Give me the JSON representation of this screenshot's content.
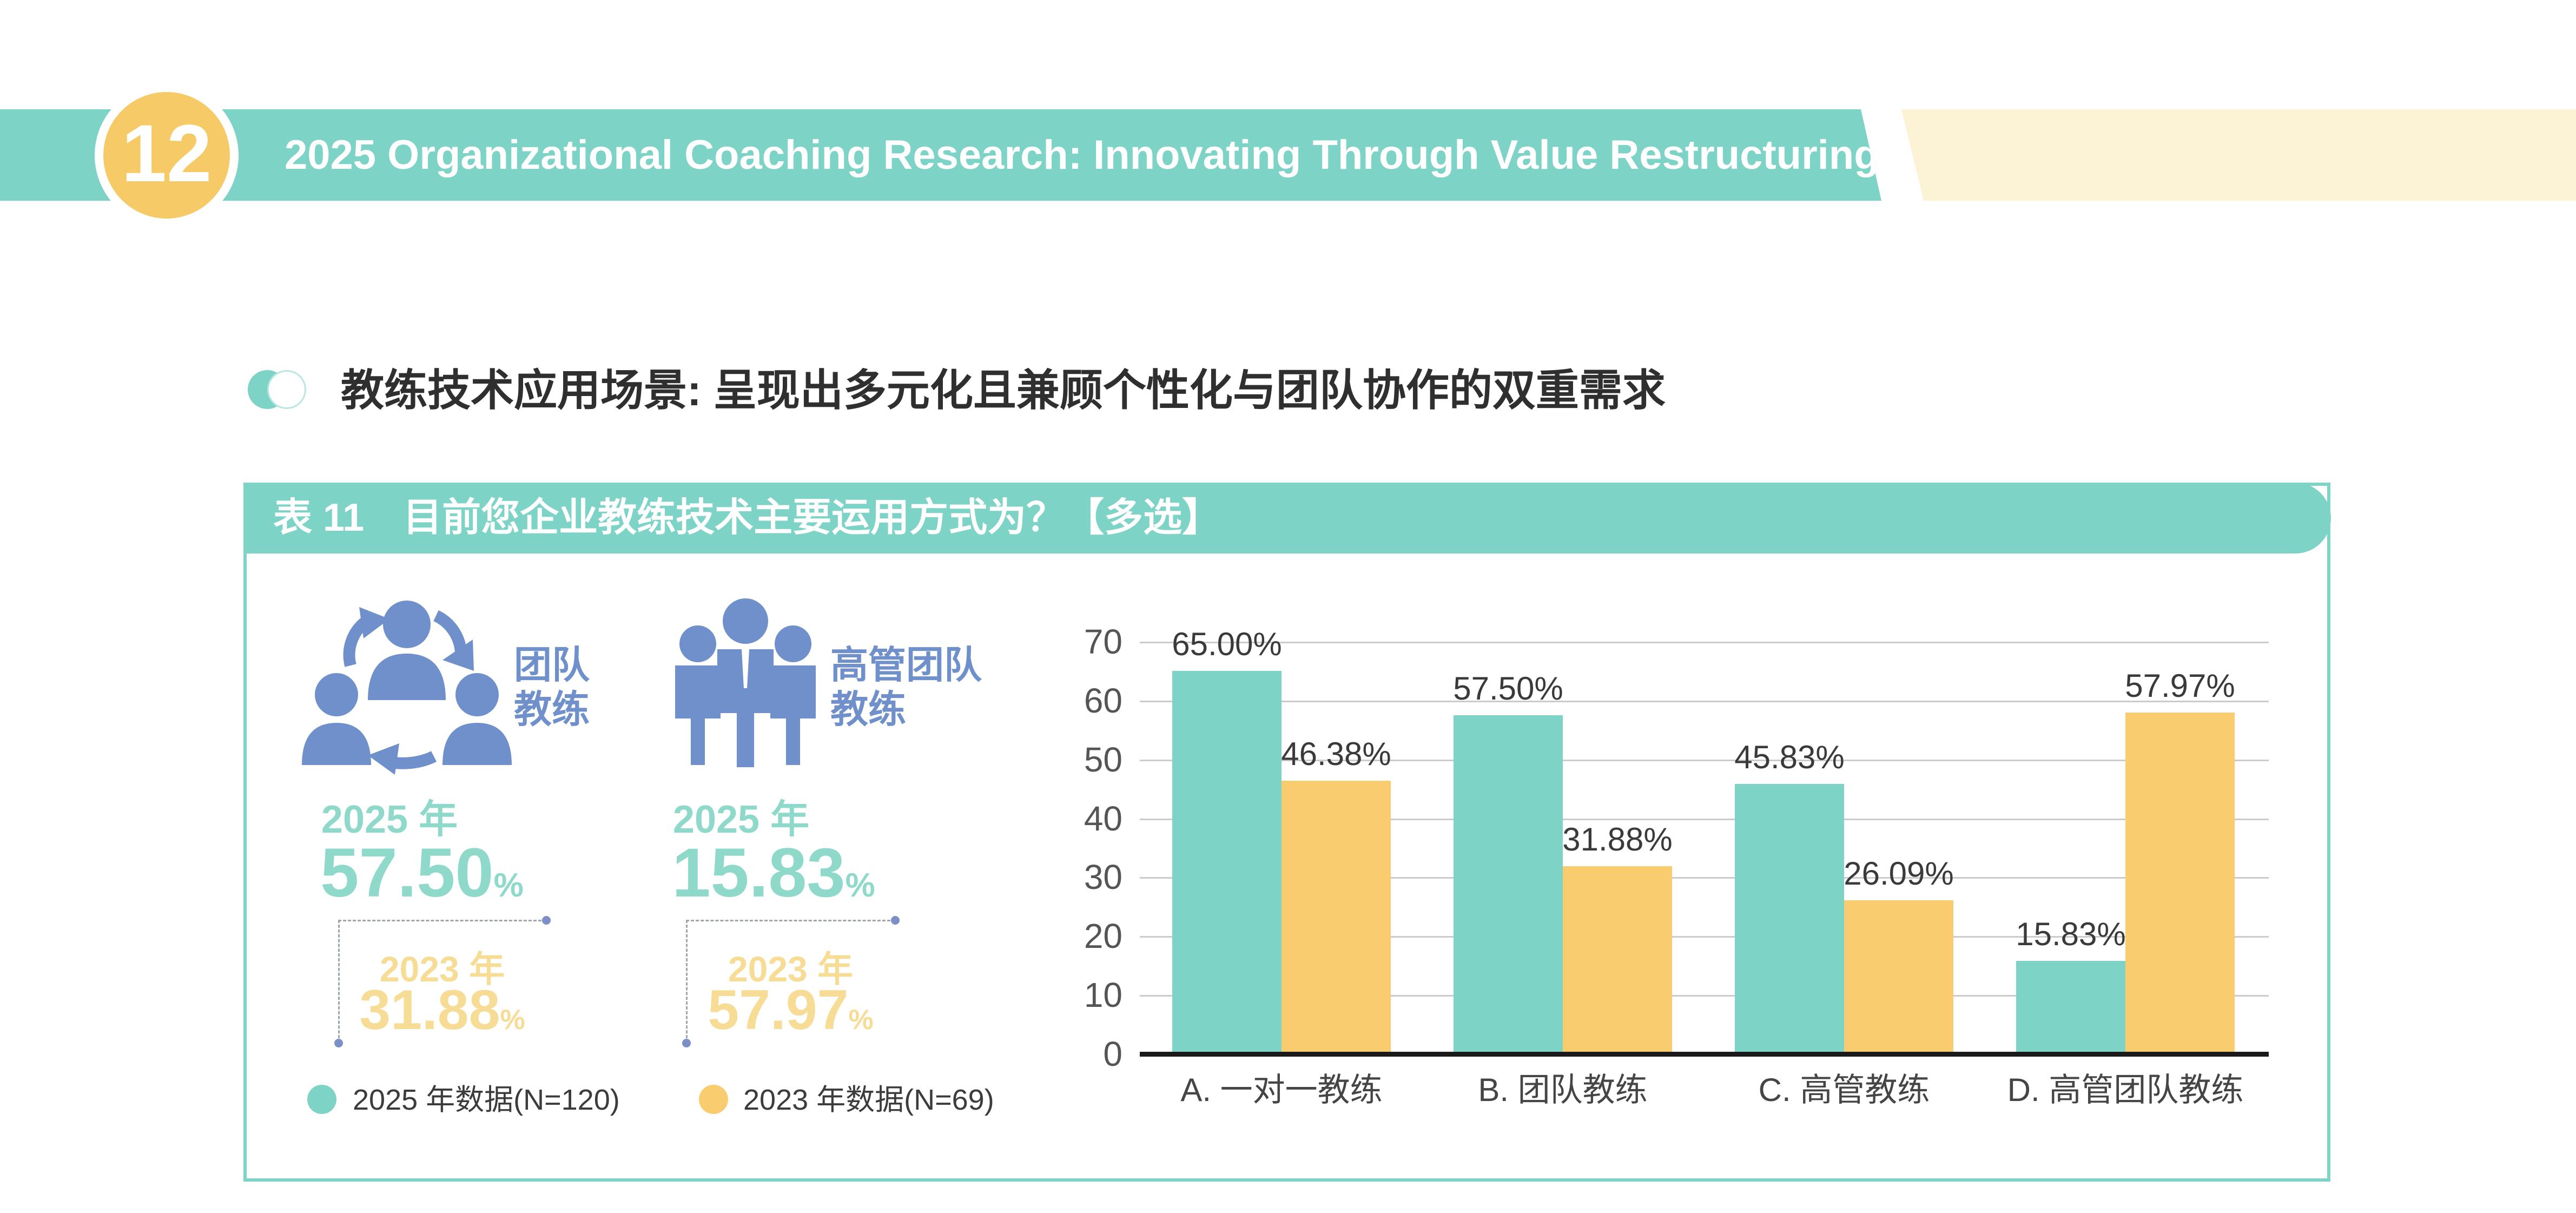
{
  "banner": {
    "number": "12",
    "title": "2025 Organizational Coaching Research: Innovating Through Value Restructuring"
  },
  "section": {
    "heading": "教练技术应用场景: 呈现出多元化且兼顾个性化与团队协作的双重需求"
  },
  "panel": {
    "header": "表 11　目前您企业教练技术主要运用方式为？【多选】"
  },
  "percent_sign": "%",
  "stats": [
    {
      "icon": "team-coaching-icon",
      "label_line1": "团队",
      "label_line2": "教练",
      "year_current": "2025 年",
      "value_current": "57.50",
      "year_previous": "2023 年",
      "value_previous": "31.88"
    },
    {
      "icon": "executive-team-coaching-icon",
      "label_line1": "高管团队",
      "label_line2": "教练",
      "year_current": "2025 年",
      "value_current": "15.83",
      "year_previous": "2023 年",
      "value_previous": "57.97"
    }
  ],
  "legend": [
    {
      "label": "2025 年数据(N=120)",
      "color_key": "teal"
    },
    {
      "label": "2023 年数据(N=69)",
      "color_key": "yellow"
    }
  ],
  "chart_data": {
    "type": "bar",
    "title": "表 11 目前您企业教练技术主要运用方式为？【多选】",
    "categories": [
      "A. 一对一教练",
      "B. 团队教练",
      "C. 高管教练",
      "D. 高管团队教练"
    ],
    "series": [
      {
        "name": "2025 年数据(N=120)",
        "color_key": "teal",
        "values": [
          65.0,
          57.5,
          45.83,
          15.83
        ],
        "labels": [
          "65.00%",
          "57.50%",
          "45.83%",
          "15.83%"
        ]
      },
      {
        "name": "2023 年数据(N=69)",
        "color_key": "yellow",
        "values": [
          46.38,
          31.88,
          26.09,
          57.97
        ],
        "labels": [
          "46.38%",
          "31.88%",
          "26.09%",
          "57.97%"
        ]
      }
    ],
    "xlabel": "",
    "ylabel": "",
    "ylim": [
      0,
      70
    ],
    "yticks": [
      0,
      10,
      20,
      30,
      40,
      50,
      60,
      70
    ],
    "grid": "horizontal",
    "legend_position": "bottom-left"
  },
  "colors": {
    "teal": "#7ED3C7",
    "teal_text": "#8FD9CB",
    "yellow": "#F9CD6F",
    "yellow_text": "#F7DC95",
    "cream": "#FCF2D5",
    "circle_yellow": "#F6CB67",
    "blue": "#7090CC",
    "gridline": "#CBCBCB",
    "axis": "#1A1A1A",
    "dash": "#9FA6B0",
    "dot": "#7C8FC7"
  }
}
